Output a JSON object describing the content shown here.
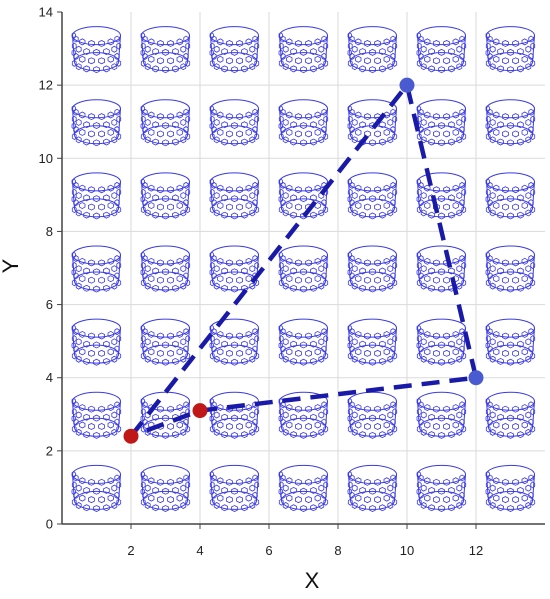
{
  "chart_data": {
    "type": "scatter",
    "xlabel": "X",
    "ylabel": "Y",
    "xlim": [
      0,
      14
    ],
    "ylim": [
      0,
      14
    ],
    "xticks": [
      2,
      4,
      6,
      8,
      10,
      12
    ],
    "yticks": [
      0,
      2,
      4,
      6,
      8,
      10,
      12,
      14
    ],
    "grid": true,
    "background_motif": {
      "description": "nanotube ring icon in each grid cell",
      "columns": [
        1,
        3,
        5,
        7,
        9,
        11,
        13
      ],
      "rows": [
        1,
        3,
        5,
        7,
        9,
        11,
        13
      ],
      "color": "#3a3ae6"
    },
    "series": [
      {
        "style": "dashed",
        "color": "#1a1aa8",
        "points": [
          {
            "x": 2,
            "y": 2.4
          },
          {
            "x": 10,
            "y": 12
          },
          {
            "x": 12,
            "y": 4
          },
          {
            "x": 4,
            "y": 3.1
          },
          {
            "x": 2,
            "y": 2.4
          }
        ]
      }
    ],
    "markers": [
      {
        "x": 2,
        "y": 2.4,
        "color": "#c01818"
      },
      {
        "x": 4,
        "y": 3.1,
        "color": "#c01818"
      },
      {
        "x": 10,
        "y": 12,
        "color": "#4a5ad0"
      },
      {
        "x": 12,
        "y": 4,
        "color": "#4a5ad0"
      }
    ]
  }
}
